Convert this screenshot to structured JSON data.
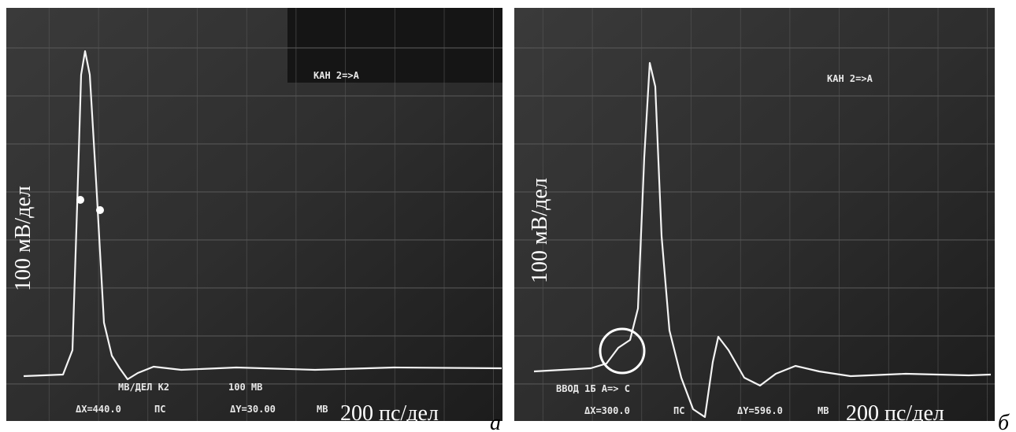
{
  "panels": [
    {
      "channel": "КАН 2=>А",
      "line1": [
        "МВ/ДЕЛ К2",
        "100 МВ"
      ],
      "dx": "ΔX=440.0",
      "dx_unit": "ПС",
      "dy": "ΔY=30.00",
      "dy_unit": "МВ",
      "y_scale": "100 мВ/дел",
      "x_scale": "200 пс/дел",
      "letter": "а"
    },
    {
      "channel": "КАН 2=>А",
      "line1": [
        "ВВОД 1Б А=> С"
      ],
      "dx": "ΔX=300.0",
      "dx_unit": "ПС",
      "dy": "ΔY=596.0",
      "dy_unit": "МВ",
      "y_scale": "100 мВ/дел",
      "x_scale": "200 пс/дел",
      "letter": "б"
    }
  ]
}
